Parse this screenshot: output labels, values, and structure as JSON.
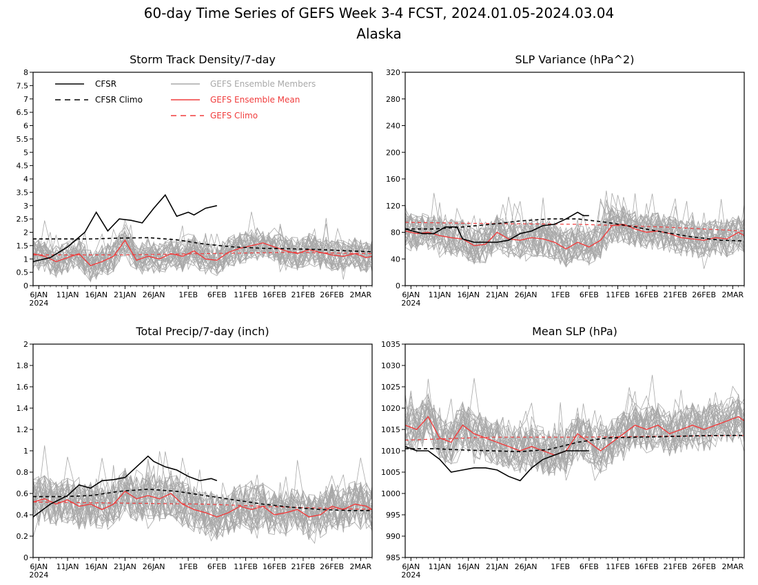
{
  "figure": {
    "title": "60-day Time Series of GEFS Week 3-4 FCST, 2024.01.05-2024.03.04",
    "subtitle": "Alaska"
  },
  "legend": {
    "placement": "top-left of Storm Track Density panel",
    "entries": [
      {
        "label": "CFSR",
        "color": "#000000",
        "style": "solid"
      },
      {
        "label": "CFSR Climo",
        "color": "#000000",
        "style": "dashed"
      },
      {
        "label": "GEFS Ensemble Members",
        "color": "#a8a8a8",
        "style": "solid"
      },
      {
        "label": "GEFS Ensemble Mean",
        "color": "#f03c3c",
        "style": "solid"
      },
      {
        "label": "GEFS Climo",
        "color": "#f03c3c",
        "style": "dashed"
      }
    ]
  },
  "colors": {
    "cfsr": "#000000",
    "members": "#a8a8a8",
    "ensemble_mean": "#f03c3c",
    "gefs_climo": "#f03c3c"
  },
  "x_axis": {
    "ticks": [
      {
        "day": 1,
        "label": "6JAN"
      },
      {
        "day": 6,
        "label": "11JAN"
      },
      {
        "day": 11,
        "label": "16JAN"
      },
      {
        "day": 16,
        "label": "21JAN"
      },
      {
        "day": 21,
        "label": "26JAN"
      },
      {
        "day": 27,
        "label": "1FEB"
      },
      {
        "day": 32,
        "label": "6FEB"
      },
      {
        "day": 37,
        "label": "11FEB"
      },
      {
        "day": 42,
        "label": "16FEB"
      },
      {
        "day": 47,
        "label": "21FEB"
      },
      {
        "day": 52,
        "label": "26FEB"
      },
      {
        "day": 57,
        "label": "2MAR"
      }
    ],
    "year_label": "2024",
    "range": [
      0,
      59
    ]
  },
  "chart_data": [
    {
      "type": "line",
      "title": "Storm Track Density/7-day",
      "ylim": [
        0,
        8
      ],
      "yticks": [
        "0",
        "0.5",
        "1",
        "1.5",
        "2",
        "2.5",
        "3",
        "3.5",
        "4",
        "4.5",
        "5",
        "5.5",
        "6",
        "6.5",
        "7",
        "7.5",
        "8"
      ],
      "series": [
        {
          "name": "CFSR",
          "color": "#000000",
          "dash": "",
          "width": 1.6,
          "x": [
            0,
            3,
            6,
            9,
            11,
            13,
            15,
            17,
            19,
            21,
            23,
            25,
            27,
            28,
            30,
            32
          ],
          "y": [
            0.9,
            1.05,
            1.45,
            2.0,
            2.75,
            2.05,
            2.5,
            2.45,
            2.35,
            2.9,
            3.4,
            2.6,
            2.75,
            2.65,
            2.9,
            3.0
          ]
        },
        {
          "name": "CFSR Climo",
          "color": "#000000",
          "dash": "5,4",
          "width": 1.6,
          "x": [
            0,
            5,
            10,
            15,
            20,
            25,
            30,
            35,
            40,
            45,
            50,
            55,
            59
          ],
          "y": [
            1.75,
            1.75,
            1.75,
            1.78,
            1.8,
            1.72,
            1.55,
            1.45,
            1.4,
            1.38,
            1.35,
            1.3,
            1.27
          ]
        },
        {
          "name": "GEFS Ensemble Mean",
          "color": "#f03c3c",
          "dash": "",
          "width": 1.4,
          "x": [
            0,
            2,
            4,
            6,
            8,
            10,
            12,
            14,
            16,
            18,
            20,
            22,
            24,
            26,
            28,
            30,
            32,
            34,
            36,
            38,
            40,
            42,
            44,
            46,
            48,
            50,
            52,
            54,
            56,
            58,
            59
          ],
          "y": [
            1.2,
            1.1,
            0.9,
            1.05,
            1.2,
            0.75,
            0.9,
            1.1,
            1.7,
            0.95,
            1.1,
            1.0,
            1.2,
            1.1,
            1.3,
            1.0,
            0.95,
            1.25,
            1.4,
            1.5,
            1.6,
            1.45,
            1.3,
            1.2,
            1.35,
            1.25,
            1.15,
            1.1,
            1.2,
            1.05,
            1.1
          ]
        },
        {
          "name": "GEFS Climo",
          "color": "#f03c3c",
          "dash": "5,4",
          "width": 1.2,
          "x": [
            0,
            15,
            30,
            45,
            59
          ],
          "y": [
            1.15,
            1.15,
            1.2,
            1.25,
            1.2
          ]
        }
      ],
      "members": {
        "color": "#a8a8a8",
        "count": 31,
        "center": 1.2,
        "spread": 0.6,
        "ymin": 0.05,
        "ymax": 3.7
      }
    },
    {
      "type": "line",
      "title": "SLP Variance (hPa^2)",
      "ylim": [
        0,
        320
      ],
      "yticks": [
        "0",
        "40",
        "80",
        "120",
        "160",
        "200",
        "240",
        "280",
        "320"
      ],
      "series": [
        {
          "name": "CFSR",
          "color": "#000000",
          "dash": "",
          "width": 1.6,
          "x": [
            0,
            3,
            5,
            7,
            9,
            10,
            12,
            14,
            16,
            18,
            20,
            22,
            24,
            26,
            28,
            30,
            31,
            32
          ],
          "y": [
            85,
            78,
            78,
            88,
            88,
            70,
            65,
            65,
            65,
            68,
            78,
            82,
            90,
            92,
            100,
            110,
            105,
            105
          ]
        },
        {
          "name": "CFSR Climo",
          "color": "#000000",
          "dash": "5,4",
          "width": 1.6,
          "x": [
            0,
            5,
            10,
            15,
            20,
            25,
            30,
            35,
            40,
            45,
            50,
            55,
            59
          ],
          "y": [
            85,
            85,
            88,
            92,
            97,
            100,
            100,
            95,
            88,
            80,
            73,
            68,
            67
          ]
        },
        {
          "name": "GEFS Ensemble Mean",
          "color": "#f03c3c",
          "dash": "",
          "width": 1.4,
          "x": [
            0,
            2,
            4,
            6,
            8,
            10,
            12,
            14,
            16,
            18,
            20,
            22,
            24,
            26,
            28,
            30,
            32,
            34,
            36,
            38,
            40,
            42,
            44,
            46,
            48,
            50,
            52,
            54,
            56,
            58,
            59
          ],
          "y": [
            82,
            78,
            80,
            75,
            72,
            70,
            60,
            62,
            80,
            70,
            68,
            72,
            70,
            65,
            55,
            65,
            58,
            68,
            90,
            92,
            85,
            80,
            82,
            78,
            72,
            70,
            68,
            72,
            70,
            80,
            75
          ]
        },
        {
          "name": "GEFS Climo",
          "color": "#f03c3c",
          "dash": "5,4",
          "width": 1.2,
          "x": [
            0,
            15,
            30,
            45,
            59
          ],
          "y": [
            95,
            93,
            92,
            88,
            82
          ]
        }
      ],
      "members": {
        "color": "#a8a8a8",
        "count": 31,
        "center": 80,
        "spread": 28,
        "ymin": 20,
        "ymax": 225
      }
    },
    {
      "type": "line",
      "title": "Total Precip/7-day (inch)",
      "ylim": [
        0,
        2
      ],
      "yticks": [
        "0",
        "0.2",
        "0.4",
        "0.6",
        "0.8",
        "1",
        "1.2",
        "1.4",
        "1.6",
        "1.8",
        "2"
      ],
      "series": [
        {
          "name": "CFSR",
          "color": "#000000",
          "dash": "",
          "width": 1.6,
          "x": [
            0,
            3,
            6,
            8,
            10,
            12,
            14,
            16,
            18,
            20,
            21,
            23,
            25,
            27,
            29,
            31,
            32
          ],
          "y": [
            0.38,
            0.5,
            0.58,
            0.68,
            0.65,
            0.72,
            0.73,
            0.75,
            0.85,
            0.95,
            0.9,
            0.85,
            0.82,
            0.76,
            0.72,
            0.74,
            0.72
          ]
        },
        {
          "name": "CFSR Climo",
          "color": "#000000",
          "dash": "5,4",
          "width": 1.6,
          "x": [
            0,
            5,
            10,
            15,
            20,
            25,
            30,
            35,
            40,
            45,
            50,
            55,
            59
          ],
          "y": [
            0.57,
            0.57,
            0.58,
            0.62,
            0.64,
            0.62,
            0.58,
            0.54,
            0.5,
            0.47,
            0.45,
            0.44,
            0.44
          ]
        },
        {
          "name": "GEFS Ensemble Mean",
          "color": "#f03c3c",
          "dash": "",
          "width": 1.4,
          "x": [
            0,
            2,
            4,
            6,
            8,
            10,
            12,
            14,
            16,
            18,
            20,
            22,
            24,
            26,
            28,
            30,
            32,
            34,
            36,
            38,
            40,
            42,
            44,
            46,
            48,
            50,
            52,
            54,
            56,
            58,
            59
          ],
          "y": [
            0.52,
            0.55,
            0.5,
            0.54,
            0.48,
            0.5,
            0.45,
            0.5,
            0.62,
            0.55,
            0.58,
            0.55,
            0.6,
            0.5,
            0.45,
            0.42,
            0.38,
            0.42,
            0.48,
            0.45,
            0.48,
            0.4,
            0.42,
            0.45,
            0.38,
            0.4,
            0.48,
            0.45,
            0.5,
            0.48,
            0.45
          ]
        },
        {
          "name": "GEFS Climo",
          "color": "#f03c3c",
          "dash": "5,4",
          "width": 1.2,
          "x": [
            0,
            15,
            30,
            45,
            59
          ],
          "y": [
            0.52,
            0.51,
            0.5,
            0.47,
            0.45
          ]
        }
      ],
      "members": {
        "color": "#a8a8a8",
        "count": 31,
        "center": 0.5,
        "spread": 0.22,
        "ymin": 0.1,
        "ymax": 1.05
      }
    },
    {
      "type": "line",
      "title": "Mean SLP (hPa)",
      "ylim": [
        985,
        1035
      ],
      "yticks": [
        "985",
        "990",
        "995",
        "1000",
        "1005",
        "1010",
        "1015",
        "1020",
        "1025",
        "1030",
        "1035"
      ],
      "series": [
        {
          "name": "CFSR",
          "color": "#000000",
          "dash": "",
          "width": 1.6,
          "x": [
            0,
            2,
            4,
            6,
            8,
            10,
            12,
            14,
            16,
            18,
            20,
            22,
            24,
            26,
            28,
            30,
            32
          ],
          "y": [
            1011,
            1010,
            1010,
            1008,
            1005,
            1005.5,
            1006,
            1006,
            1005.5,
            1004,
            1003,
            1006,
            1008,
            1009,
            1010,
            1010,
            1010
          ]
        },
        {
          "name": "CFSR Climo",
          "color": "#000000",
          "dash": "5,4",
          "width": 1.6,
          "x": [
            0,
            5,
            10,
            15,
            20,
            25,
            30,
            35,
            40,
            45,
            50,
            55,
            59
          ],
          "y": [
            1010.5,
            1010.5,
            1010.2,
            1010,
            1009.8,
            1010.3,
            1012,
            1013,
            1013.2,
            1013.3,
            1013.5,
            1013.6,
            1013.6
          ]
        },
        {
          "name": "GEFS Ensemble Mean",
          "color": "#f03c3c",
          "dash": "",
          "width": 1.4,
          "x": [
            0,
            2,
            4,
            6,
            8,
            10,
            12,
            14,
            16,
            18,
            20,
            22,
            24,
            26,
            28,
            30,
            32,
            34,
            36,
            38,
            40,
            42,
            44,
            46,
            48,
            50,
            52,
            54,
            56,
            58,
            59
          ],
          "y": [
            1016,
            1015,
            1018,
            1013,
            1012,
            1016,
            1014,
            1013,
            1012,
            1011,
            1010,
            1011,
            1010,
            1009,
            1010,
            1014,
            1012,
            1010,
            1012,
            1014,
            1016,
            1015,
            1016,
            1014,
            1015,
            1016,
            1015,
            1016,
            1017,
            1018,
            1017
          ]
        },
        {
          "name": "GEFS Climo",
          "color": "#f03c3c",
          "dash": "5,4",
          "width": 1.2,
          "x": [
            0,
            15,
            30,
            45,
            59
          ],
          "y": [
            1012.5,
            1013.2,
            1013.2,
            1013.4,
            1013.6
          ]
        }
      ],
      "members": {
        "color": "#a8a8a8",
        "count": 31,
        "center": 1013,
        "spread": 5.5,
        "ymin": 998,
        "ymax": 1030
      }
    }
  ]
}
